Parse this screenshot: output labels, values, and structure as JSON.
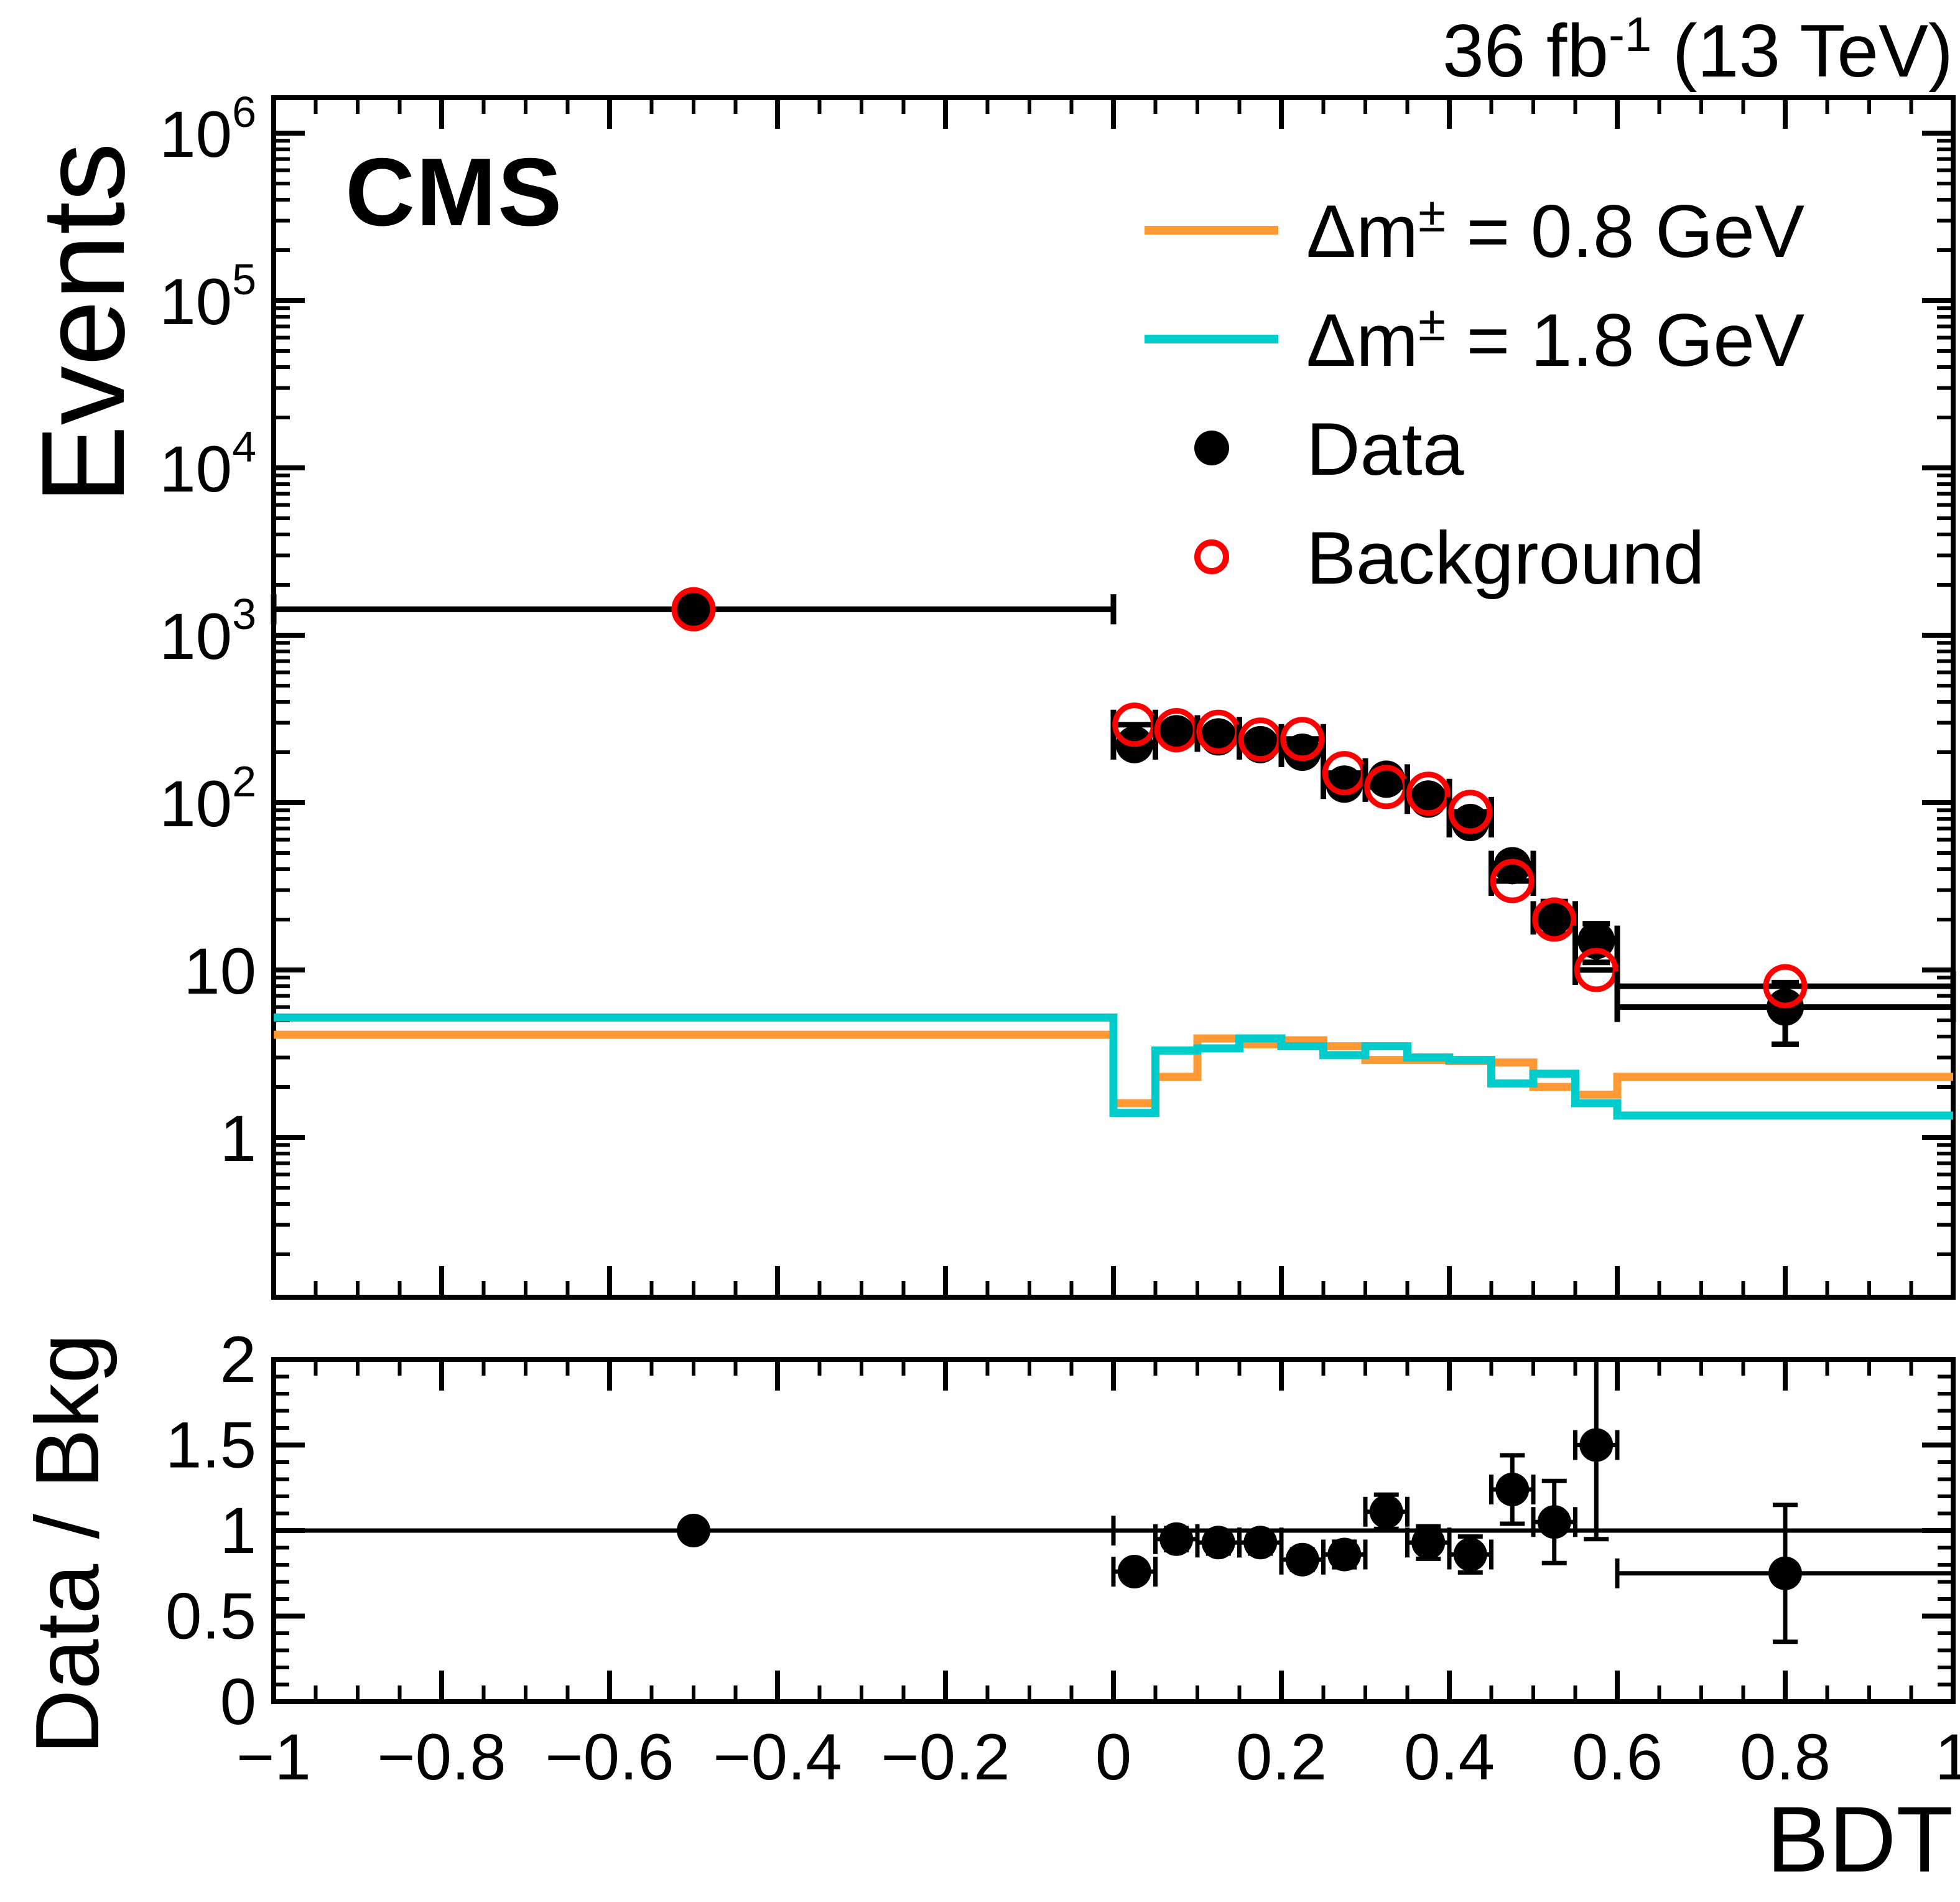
{
  "header": {
    "experiment": "CMS",
    "lumi": {
      "pre": "36 fb",
      "sup": "-1",
      "post": " (13 TeV)"
    }
  },
  "titles": {
    "y_main": "Events",
    "y_ratio": "Data / Bkg",
    "x": "BDT"
  },
  "colors": {
    "signal_dm08": "#FF9933",
    "signal_dm18": "#00CCCC",
    "background": "#FF0000",
    "data": "#000000",
    "frame": "#000000"
  },
  "legend": {
    "items": [
      {
        "marker": "line",
        "color": "#FF9933",
        "pre": "Δm",
        "sup": "±",
        "post": " = 0.8 GeV"
      },
      {
        "marker": "line",
        "color": "#00CCCC",
        "pre": "Δm",
        "sup": "±",
        "post": " = 1.8 GeV"
      },
      {
        "marker": "dot-filled",
        "color": "#000000",
        "pre": "Data",
        "sup": "",
        "post": ""
      },
      {
        "marker": "dot-open",
        "color": "#FF0000",
        "pre": "Background",
        "sup": "",
        "post": ""
      }
    ]
  },
  "chart_data": {
    "type": "composite",
    "panels": [
      {
        "name": "main",
        "ylabel": "Events",
        "yscale": "log",
        "ylim": [
          0.111,
          1600000
        ],
        "xlim": [
          -1,
          1
        ],
        "grid": false,
        "legend_position": "top-right"
      },
      {
        "name": "ratio",
        "ylabel": "Data / Bkg",
        "yscale": "linear",
        "ylim": [
          0,
          2
        ],
        "xlim": [
          -1,
          1
        ],
        "xlabel": "BDT",
        "reference_line": 1.0
      }
    ],
    "bin_edges": [
      -1,
      0,
      0.05,
      0.1,
      0.15,
      0.2,
      0.25,
      0.3,
      0.35,
      0.4,
      0.45,
      0.5,
      0.55,
      0.6,
      1
    ],
    "bin_centers": [
      -0.5,
      0.025,
      0.075,
      0.125,
      0.175,
      0.225,
      0.275,
      0.325,
      0.375,
      0.425,
      0.475,
      0.525,
      0.575,
      0.8
    ],
    "series": [
      {
        "name": "Data",
        "style": "points-filled",
        "color": "#000000",
        "values": [
          1430,
          222,
          258,
          247,
          222,
          200,
          129,
          138,
          105,
          76,
          42,
          21,
          15,
          6
        ],
        "yerr": [
          38,
          15,
          16,
          16,
          15,
          14,
          11.4,
          11.7,
          10.2,
          8.7,
          6.5,
          4.6,
          3.9,
          2.4
        ]
      },
      {
        "name": "Background",
        "style": "points-open",
        "color": "#FF0000",
        "values": [
          1430,
          292,
          271,
          265,
          238,
          240,
          150,
          124,
          113,
          88,
          34,
          20,
          10,
          8
        ]
      },
      {
        "name": "Δm± = 0.8 GeV",
        "style": "step-histogram",
        "color": "#FF9933",
        "values": [
          4.1,
          1.6,
          2.3,
          3.9,
          3.6,
          3.8,
          3.5,
          2.9,
          2.9,
          2.85,
          2.8,
          2.0,
          1.8,
          2.3
        ]
      },
      {
        "name": "Δm± = 1.8 GeV",
        "style": "step-histogram",
        "color": "#00CCCC",
        "values": [
          5.2,
          1.4,
          3.3,
          3.4,
          3.9,
          3.5,
          3.1,
          3.5,
          3.0,
          2.9,
          2.1,
          2.4,
          1.6,
          1.35
        ]
      }
    ],
    "ratio": {
      "name": "Data / Bkg",
      "values": [
        1.0,
        0.76,
        0.95,
        0.93,
        0.93,
        0.83,
        0.86,
        1.11,
        0.93,
        0.86,
        1.24,
        1.05,
        1.5,
        0.75
      ],
      "yerr": [
        0.03,
        0.055,
        0.065,
        0.065,
        0.065,
        0.06,
        0.075,
        0.1,
        0.095,
        0.105,
        0.2,
        0.24,
        0.55,
        0.4
      ]
    },
    "x_ticks": [
      {
        "v": -1,
        "t": "−1"
      },
      {
        "v": -0.8,
        "t": "−0.8"
      },
      {
        "v": -0.6,
        "t": "−0.6"
      },
      {
        "v": -0.4,
        "t": "−0.4"
      },
      {
        "v": -0.2,
        "t": "−0.2"
      },
      {
        "v": 0,
        "t": "0"
      },
      {
        "v": 0.2,
        "t": "0.2"
      },
      {
        "v": 0.4,
        "t": "0.4"
      },
      {
        "v": 0.6,
        "t": "0.6"
      },
      {
        "v": 0.8,
        "t": "0.8"
      },
      {
        "v": 1,
        "t": "1"
      }
    ],
    "y_ticks_main": [
      {
        "v": 1,
        "t": "1"
      },
      {
        "v": 10,
        "t": "10"
      },
      {
        "v": 100,
        "t": "10",
        "e": "2"
      },
      {
        "v": 1000,
        "t": "10",
        "e": "3"
      },
      {
        "v": 10000,
        "t": "10",
        "e": "4"
      },
      {
        "v": 100000,
        "t": "10",
        "e": "5"
      },
      {
        "v": 1000000,
        "t": "10",
        "e": "6"
      }
    ],
    "y_ticks_ratio": [
      {
        "v": 0,
        "t": "0"
      },
      {
        "v": 0.5,
        "t": "0.5"
      },
      {
        "v": 1,
        "t": "1"
      },
      {
        "v": 1.5,
        "t": "1.5"
      },
      {
        "v": 2,
        "t": "2"
      }
    ]
  }
}
